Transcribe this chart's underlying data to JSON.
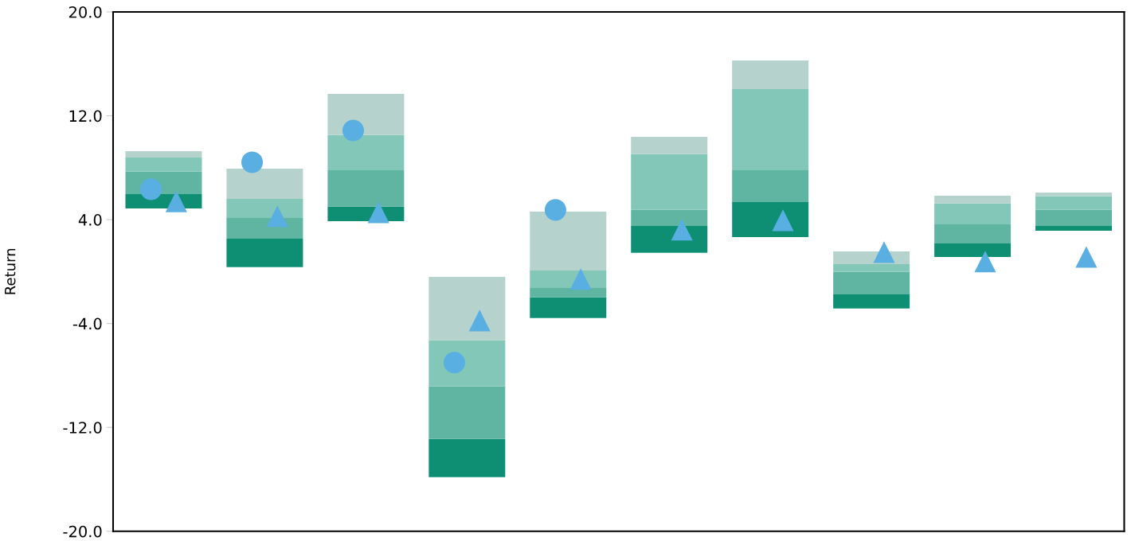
{
  "chart_data": {
    "type": "bar",
    "ylabel": "Return",
    "categories": [
      null,
      null,
      null,
      null,
      null,
      null,
      null,
      null,
      null,
      null
    ],
    "series": [
      {
        "color": "#0e8f74",
        "base": [
          4.87,
          0.34,
          3.89,
          -15.83,
          -3.58,
          1.44,
          2.66,
          -2.85,
          1.13,
          3.15
        ],
        "values": [
          1.1,
          2.2,
          1.11,
          2.94,
          1.59,
          2.08,
          2.7,
          1.1,
          1.04,
          0.37
        ]
      },
      {
        "color": "#5fb5a2",
        "base": [
          5.97,
          2.54,
          5.0,
          -12.89,
          -1.99,
          3.52,
          5.36,
          -1.75,
          2.17,
          3.52
        ],
        "values": [
          1.72,
          1.59,
          2.81,
          4.04,
          0.73,
          1.23,
          2.45,
          1.72,
          1.47,
          1.23
        ]
      },
      {
        "color": "#82c7b8",
        "base": [
          7.69,
          4.13,
          7.81,
          -8.85,
          -1.26,
          4.75,
          7.81,
          -0.03,
          3.64,
          4.75
        ],
        "values": [
          1.1,
          1.47,
          2.7,
          3.55,
          1.35,
          4.29,
          6.25,
          0.61,
          1.6,
          1.04
        ]
      },
      {
        "color": "#b5d3cc",
        "base": [
          8.79,
          5.6,
          10.51,
          -5.3,
          0.09,
          9.04,
          14.06,
          0.58,
          5.24,
          5.79
        ],
        "values": [
          0.49,
          2.33,
          3.18,
          4.9,
          4.53,
          1.34,
          2.2,
          0.98,
          0.61,
          0.3
        ]
      },
      {
        "type": "scatter",
        "marker": "circle",
        "color": "#5aafe2",
        "values": [
          6.34,
          8.42,
          10.87,
          -7.01,
          4.75,
          null,
          null,
          null,
          null,
          null
        ]
      },
      {
        "type": "scatter",
        "marker": "triangle",
        "color": "#5aafe2",
        "values": [
          5.4,
          4.26,
          4.56,
          -3.77,
          -0.58,
          3.22,
          3.95,
          1.5,
          0.77,
          1.13
        ]
      }
    ],
    "ylim": [
      -20,
      20
    ],
    "yticks": [
      {
        "value": -20,
        "label": "-20.0"
      },
      {
        "value": -12,
        "label": "-12.0"
      },
      {
        "value": -4,
        "label": "-4.0"
      },
      {
        "value": 4,
        "label": "4.0"
      },
      {
        "value": 12,
        "label": "12.0"
      },
      {
        "value": 20,
        "label": "20.0"
      }
    ],
    "grid": false,
    "legend": false
  }
}
